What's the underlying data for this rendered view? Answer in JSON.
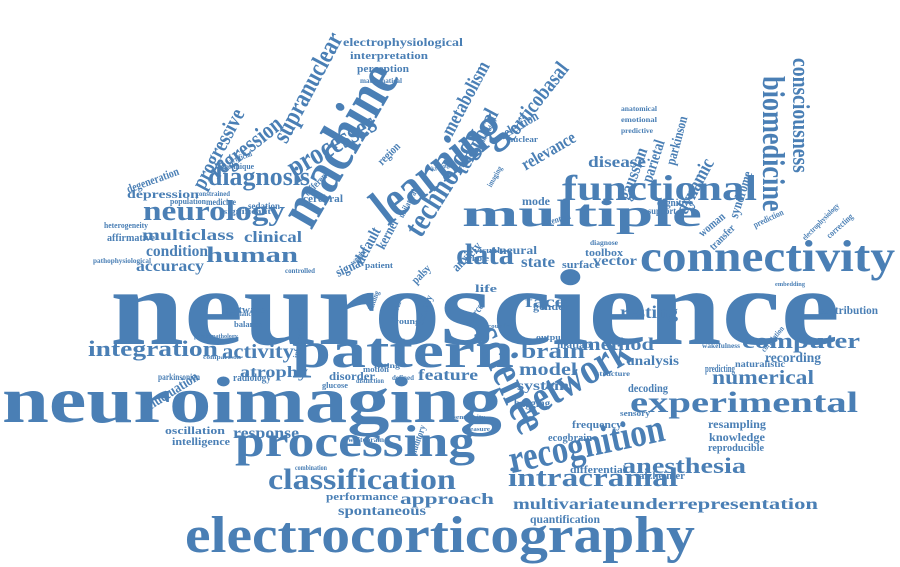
{
  "colors": {
    "word": "#4a7fb5",
    "background": "#ffffff"
  },
  "words": [
    "neuroscience",
    "neuroimaging",
    "electrocorticography",
    "machine",
    "learning",
    "pattern",
    "processing",
    "network",
    "science",
    "recognition",
    "multiple",
    "connectivity",
    "functional",
    "data",
    "experimental",
    "classification",
    "intracranial",
    "biomedicine",
    "technology",
    "diagnosis",
    "neurology",
    "processes",
    "regression",
    "progressive",
    "supranuclear",
    "corticobasal",
    "metabolism",
    "temporal",
    "integration",
    "activity",
    "fluctuation",
    "atrophy",
    "computer",
    "numerical",
    "anesthesia",
    "multivariate",
    "underrepresentation",
    "approach",
    "spontaneous",
    "response",
    "human",
    "clinical",
    "multiclass",
    "condition",
    "accuracy",
    "face",
    "brain",
    "method",
    "model",
    "feature",
    "resting",
    "consciousness",
    "dynamic",
    "gaussian",
    "parietal",
    "parkinson",
    "syndrome",
    "disease",
    "relevance",
    "selection",
    "default",
    "kernel",
    "anxiety",
    "state",
    "vector",
    "mode",
    "system",
    "analysis",
    "recording",
    "resampling",
    "knowledge",
    "reproducible",
    "alzheimer",
    "quantification",
    "performance",
    "contribution",
    "correlation",
    "differential",
    "frequency",
    "decoding",
    "bagging",
    "signal",
    "electrophysiological",
    "interpretation",
    "perception",
    "mathematical",
    "different",
    "cerebral",
    "depression",
    "degeneration",
    "heterogeneity",
    "affirmative",
    "pathophysiological",
    "software",
    "radiology",
    "parkinsonian",
    "oscillation",
    "intelligence",
    "disorder",
    "motion",
    "glucose",
    "distinction",
    "defined",
    "sensory",
    "naturalistic",
    "predicting",
    "wakefulness",
    "electrophysiology",
    "correcting",
    "prediction",
    "support",
    "cognitive",
    "woman",
    "transfer",
    "diagnose",
    "toolbox",
    "surface",
    "neural",
    "visual",
    "whole",
    "region",
    "unilateral",
    "technique",
    "artificial",
    "medicine",
    "sedation",
    "population",
    "constrained",
    "significant",
    "auditory",
    "combination",
    "whitebrain",
    "ecogbrain",
    "anatomical",
    "emotional",
    "predictive",
    "nuclear",
    "imaging",
    "individual",
    "palsy",
    "monkey",
    "young",
    "ventral",
    "finding",
    "weight",
    "patient",
    "controlled",
    "information",
    "fitting",
    "matlab",
    "output",
    "structure",
    "gender",
    "source",
    "life",
    "attention",
    "kriging",
    "imbalance",
    "balance",
    "psychopathology",
    "comparison",
    "coupling",
    "sensitivity",
    "measure",
    "embedding"
  ]
}
